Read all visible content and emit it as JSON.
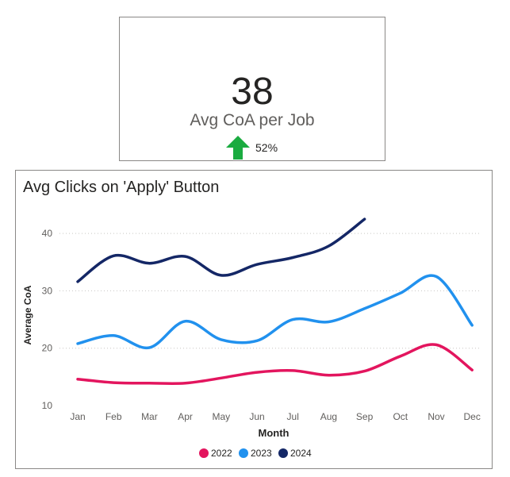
{
  "kpi": {
    "value": "38",
    "label": "Avg CoA per Job",
    "trend_percent": "52%",
    "trend_direction": "up",
    "trend_color": "#1aab40"
  },
  "chart_data": {
    "type": "line",
    "title": "Avg Clicks on 'Apply' Button",
    "xlabel": "Month",
    "ylabel": "Average CoA",
    "categories": [
      "Jan",
      "Feb",
      "Mar",
      "Apr",
      "May",
      "Jun",
      "Jul",
      "Aug",
      "Sep",
      "Oct",
      "Nov",
      "Dec"
    ],
    "ylim": [
      10,
      45
    ],
    "yticks": [
      10,
      20,
      30,
      40
    ],
    "grid": true,
    "legend_position": "bottom",
    "series": [
      {
        "name": "2022",
        "color": "#e3155e",
        "values": [
          14.6,
          14.0,
          13.9,
          13.9,
          14.8,
          15.8,
          16.1,
          15.3,
          16.0,
          18.6,
          20.6,
          16.2
        ]
      },
      {
        "name": "2023",
        "color": "#2191ee",
        "values": [
          20.8,
          22.2,
          20.1,
          24.7,
          21.5,
          21.3,
          25.0,
          24.6,
          26.9,
          29.6,
          32.5,
          24.0
        ]
      },
      {
        "name": "2024",
        "color": "#142766",
        "values": [
          31.6,
          36.1,
          34.8,
          36.0,
          32.7,
          34.6,
          35.8,
          37.8,
          42.5,
          null,
          null,
          null
        ]
      }
    ]
  }
}
